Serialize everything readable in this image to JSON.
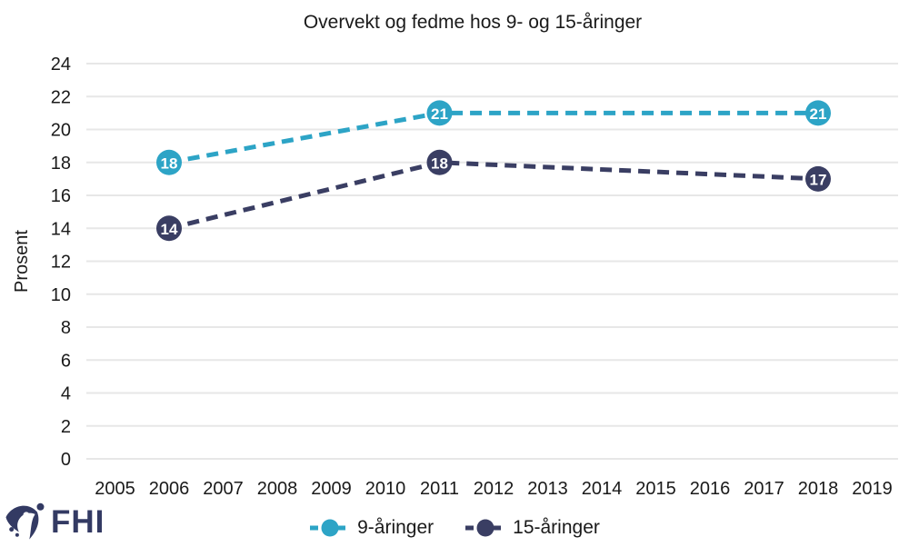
{
  "chart_data": {
    "type": "line",
    "title": "Overvekt og fedme hos 9- og 15-åringer",
    "xlabel": "",
    "ylabel": "Prosent",
    "ylim": [
      0,
      24
    ],
    "y_ticks": [
      0,
      2,
      4,
      6,
      8,
      10,
      12,
      14,
      16,
      18,
      20,
      22,
      24
    ],
    "x_ticks": [
      2005,
      2006,
      2007,
      2008,
      2009,
      2010,
      2011,
      2012,
      2013,
      2014,
      2015,
      2016,
      2017,
      2018,
      2019
    ],
    "grid": "horizontal",
    "legend_position": "bottom",
    "line_style": "dashed",
    "series": [
      {
        "name": "9-åringer",
        "color": "#2da4c6",
        "points": [
          {
            "x": 2006,
            "y": 18
          },
          {
            "x": 2011,
            "y": 21
          },
          {
            "x": 2018,
            "y": 21
          }
        ]
      },
      {
        "name": "15-åringer",
        "color": "#3a3e63",
        "points": [
          {
            "x": 2006,
            "y": 14
          },
          {
            "x": 2011,
            "y": 18
          },
          {
            "x": 2018,
            "y": 17
          }
        ]
      }
    ]
  },
  "branding": {
    "logo_text": "FHI"
  },
  "colors": {
    "grid": "#e7e7e7",
    "text": "#1a1a1a",
    "marker_label": "#ffffff",
    "logo": "#333a63"
  }
}
